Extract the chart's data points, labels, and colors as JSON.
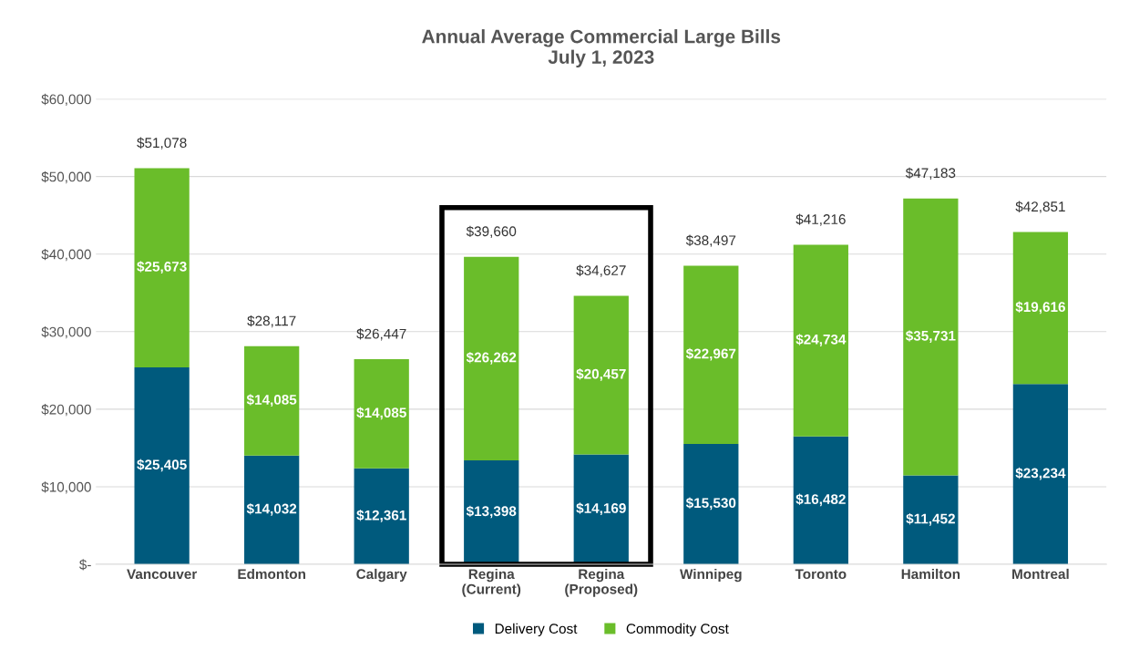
{
  "chart_data": {
    "type": "bar",
    "stacked": true,
    "title": "Annual Average Commercial Large Bills\nJuly 1, 2023",
    "categories": [
      "Vancouver",
      "Edmonton",
      "Calgary",
      "Regina\n(Current)",
      "Regina\n(Proposed)",
      "Winnipeg",
      "Toronto",
      "Hamilton",
      "Montreal"
    ],
    "series": [
      {
        "name": "Delivery Cost",
        "color": "#005a7d",
        "values": [
          25405,
          14032,
          12361,
          13398,
          14169,
          15530,
          16482,
          11452,
          23234
        ],
        "value_labels": [
          "$25,405",
          "$14,032",
          "$12,361",
          "$13,398",
          "$14,169",
          "$15,530",
          "$16,482",
          "$11,452",
          "$23,234"
        ]
      },
      {
        "name": "Commodity Cost",
        "color": "#6abd2a",
        "values": [
          25673,
          14085,
          14085,
          26262,
          20457,
          22967,
          24734,
          35731,
          19616
        ],
        "value_labels": [
          "$25,673",
          "$14,085",
          "$14,085",
          "$26,262",
          "$20,457",
          "$22,967",
          "$24,734",
          "$35,731",
          "$19,616"
        ]
      }
    ],
    "totals": [
      "$51,078",
      "$28,117",
      "$26,447",
      "$39,660",
      "$34,627",
      "$38,497",
      "$41,216",
      "$47,183",
      "$42,851"
    ],
    "ylim": [
      0,
      60000
    ],
    "yticks": [
      {
        "value": 0,
        "label": "$-"
      },
      {
        "value": 10000,
        "label": "$10,000"
      },
      {
        "value": 20000,
        "label": "$20,000"
      },
      {
        "value": 30000,
        "label": "$30,000"
      },
      {
        "value": 40000,
        "label": "$40,000"
      },
      {
        "value": 50000,
        "label": "$50,000"
      },
      {
        "value": 60000,
        "label": "$60,000"
      }
    ],
    "grid": "y",
    "legend": "bottom"
  }
}
